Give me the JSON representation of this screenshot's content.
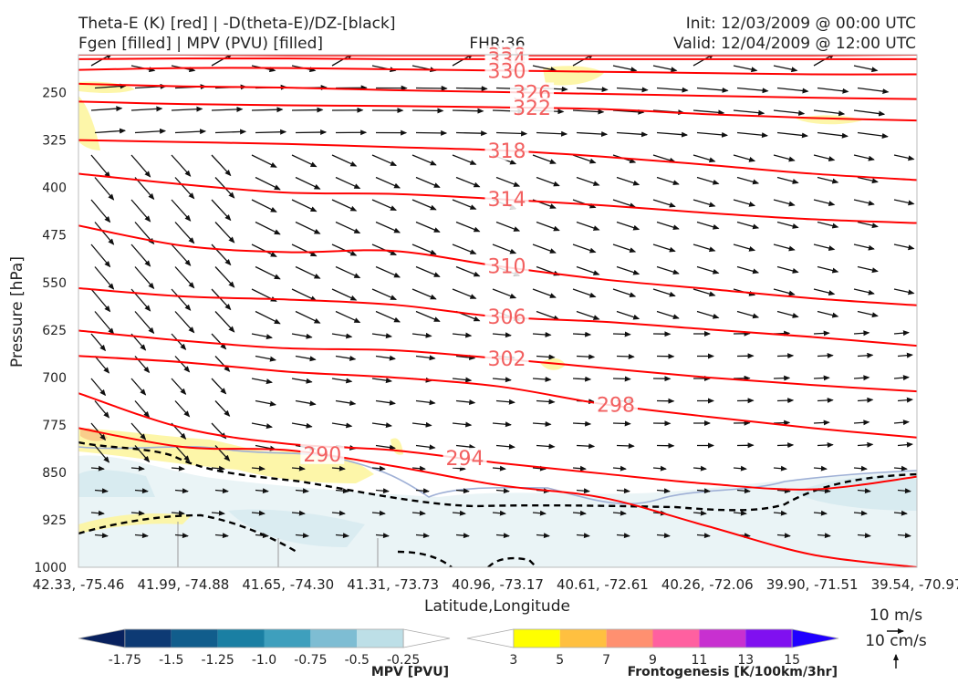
{
  "header": {
    "title_left_1": "Theta-E (K) [red] | -D(theta-E)/DZ-[black]",
    "title_left_2": "Fgen [filled] | MPV (PVU) [filled]",
    "fhr": "FHR:36",
    "init": "Init: 12/03/2009 @ 00:00 UTC",
    "valid": "Valid: 12/04/2009 @ 12:00 UTC"
  },
  "colors": {
    "theta_e": "#ff0000",
    "theta_e_label": "#f26060",
    "dtheta_dz": "#000000",
    "terrain_line": "#9fb0d6",
    "mpv_shade": "#e8f3f5",
    "frontogenesis_shade": "#fdf5a0"
  },
  "chart_data": {
    "type": "cross-section",
    "xlabel": "Latitude,Longitude",
    "ylabel": "Pressure [hPa]",
    "x_ticks": [
      "42.33, -75.46",
      "41.99, -74.88",
      "41.65, -74.30",
      "41.31, -73.73",
      "40.96, -73.17",
      "40.61, -72.61",
      "40.26, -72.06",
      "39.90, -71.51",
      "39.54, -70.97"
    ],
    "y_ticks": [
      250,
      325,
      400,
      475,
      550,
      625,
      700,
      775,
      850,
      925,
      1000
    ],
    "ylim": [
      1000,
      190
    ],
    "y_scale": "linear (inverted)",
    "theta_e_contours": [
      {
        "value": 338,
        "label": "338",
        "label_x": 0.5,
        "p": [
          190,
          190,
          191,
          191,
          191,
          191,
          191,
          191,
          190
        ]
      },
      {
        "value": 334,
        "label": "334",
        "label_x": 0.5,
        "p": [
          197,
          196,
          196,
          197,
          197,
          197,
          197,
          197,
          197
        ]
      },
      {
        "value": 330,
        "label": "330",
        "label_x": 0.5,
        "p": [
          214,
          211,
          211,
          213,
          215,
          217,
          219,
          221,
          221
        ]
      },
      {
        "value": 326,
        "label": "326",
        "label_x": 0.53,
        "p": [
          236,
          240,
          242,
          246,
          249,
          252,
          255,
          258,
          260
        ]
      },
      {
        "value": 322,
        "label": "322",
        "label_x": 0.53,
        "p": [
          264,
          268,
          270,
          271,
          273,
          276,
          284,
          290,
          294
        ]
      },
      {
        "value": 318,
        "label": "318",
        "label_x": 0.5,
        "p": [
          325,
          328,
          331,
          336,
          341,
          351,
          364,
          378,
          388
        ]
      },
      {
        "value": 314,
        "label": "314",
        "label_x": 0.5,
        "p": [
          378,
          395,
          408,
          410,
          418,
          428,
          440,
          450,
          456
        ]
      },
      {
        "value": 310,
        "label": "310",
        "label_x": 0.5,
        "p": [
          460,
          492,
          502,
          500,
          524,
          545,
          560,
          575,
          586
        ]
      },
      {
        "value": 306,
        "label": "306",
        "label_x": 0.5,
        "p": [
          559,
          572,
          577,
          585,
          604,
          612,
          624,
          636,
          650
        ]
      },
      {
        "value": 302,
        "label": "302",
        "label_x": 0.5,
        "p": [
          626,
          642,
          654,
          657,
          670,
          685,
          700,
          712,
          722
        ]
      },
      {
        "value": 298,
        "label": "298",
        "label_x": 0.63,
        "p": [
          666,
          676,
          691,
          700,
          714,
          742,
          762,
          780,
          795
        ]
      },
      {
        "value": 294,
        "label": "294",
        "label_x": 0.45,
        "p": [
          725,
          780,
          805,
          815,
          835,
          852,
          868,
          877,
          857
        ]
      },
      {
        "value": 290,
        "label": "290",
        "label_x": 0.28,
        "p": [
          780,
          810,
          815,
          840,
          870,
          890,
          935,
          980,
          1000
        ]
      }
    ],
    "mpv_colorbar": {
      "label": "MPV [PVU]",
      "ticks": [
        "-1.75",
        "-1.5",
        "-1.25",
        "-1.0",
        "-0.75",
        "-0.5",
        "-0.25"
      ],
      "colors": [
        "#08215e",
        "#0d3a74",
        "#115d8c",
        "#1a7fa3",
        "#3e9fbd",
        "#7ebdd3",
        "#bddfe7",
        "#ffffff"
      ]
    },
    "fgen_colorbar": {
      "label": "Frontogenesis [K/100km/3hr]",
      "ticks": [
        "3",
        "5",
        "7",
        "9",
        "11",
        "13",
        "15"
      ],
      "colors": [
        "#ffffff",
        "#ffff00",
        "#ffc040",
        "#ff9070",
        "#ff60a0",
        "#c830d0",
        "#8010f0",
        "#2000ff"
      ]
    },
    "vector_key": {
      "horizontal": "10 m/s",
      "vertical": "10 cm/s"
    },
    "grid": false
  }
}
